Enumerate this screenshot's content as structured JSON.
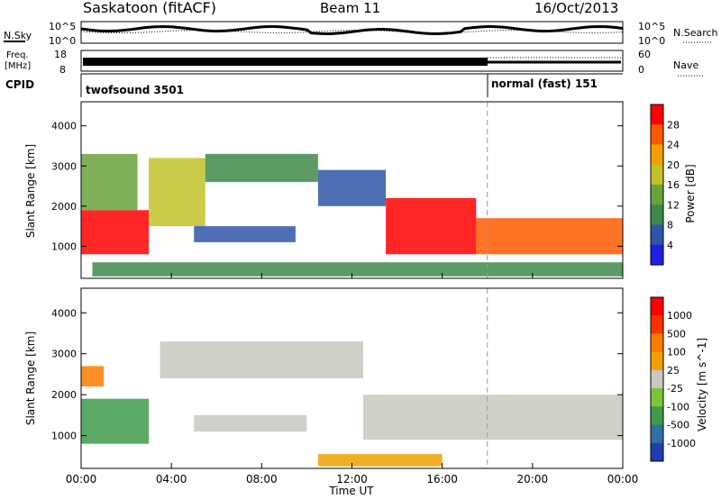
{
  "header": {
    "title": "Saskatoon (fitACF)",
    "beam": "Beam 11",
    "date": "16/Oct/2013"
  },
  "strip_nsky": {
    "label": "N.Sky",
    "right_label": "N.Search",
    "y_ticks_left": [
      "10^5",
      "10^0"
    ],
    "y_ticks_right": [
      "10^5",
      "10^0"
    ],
    "legend_style": "dotted"
  },
  "strip_freq": {
    "label_line1": "Freq.",
    "label_line2": "[MHz]",
    "right_label": "Nave",
    "y_ticks_left": [
      "18",
      "8"
    ],
    "y_ticks_right": [
      "60",
      "0"
    ],
    "legend_style": "dotted"
  },
  "strip_cpid": {
    "label": "CPID",
    "segments": [
      {
        "name": "twofsound 3501",
        "start_hour": 0,
        "end_hour": 18
      },
      {
        "name": "normal (fast) 151",
        "start_hour": 18,
        "end_hour": 24
      }
    ]
  },
  "chart_data": [
    {
      "type": "heatmap",
      "quantity": "power",
      "ylabel": "Slant Range [km]",
      "ylim": [
        200,
        4600
      ],
      "yticks": [
        1000,
        2000,
        3000,
        4000
      ],
      "xlim": [
        0,
        24
      ],
      "colorbar": {
        "label": "Power [dB]",
        "ticks": [
          "4",
          "8",
          "12",
          "16",
          "20",
          "24",
          "28"
        ],
        "colors": [
          "#1f1fe6",
          "#2f55a8",
          "#3f8a4a",
          "#69a23c",
          "#c2c22a",
          "#f0a000",
          "#ff5a00",
          "#ff0000"
        ]
      },
      "regions": [
        {
          "t0": 0.0,
          "t1": 3.0,
          "r0": 800,
          "r1": 1900,
          "level": 7
        },
        {
          "t0": 0.0,
          "t1": 2.5,
          "r0": 1900,
          "r1": 3300,
          "level": 3
        },
        {
          "t0": 3.0,
          "t1": 5.5,
          "r0": 1500,
          "r1": 3200,
          "level": 4
        },
        {
          "t0": 5.5,
          "t1": 10.5,
          "r0": 2600,
          "r1": 3300,
          "level": 2
        },
        {
          "t0": 10.5,
          "t1": 13.5,
          "r0": 2000,
          "r1": 2900,
          "level": 1
        },
        {
          "t0": 13.5,
          "t1": 17.5,
          "r0": 800,
          "r1": 2200,
          "level": 7
        },
        {
          "t0": 17.5,
          "t1": 24.0,
          "r0": 800,
          "r1": 1700,
          "level": 6
        },
        {
          "t0": 5.0,
          "t1": 9.5,
          "r0": 1100,
          "r1": 1500,
          "level": 1
        },
        {
          "t0": 0.5,
          "t1": 24.0,
          "r0": 250,
          "r1": 600,
          "level": 2
        }
      ]
    },
    {
      "type": "heatmap",
      "quantity": "velocity",
      "xlabel": "Time UT",
      "ylabel": "Slant Range [km]",
      "ylim": [
        200,
        4600
      ],
      "yticks": [
        1000,
        2000,
        3000,
        4000
      ],
      "xlim": [
        0,
        24
      ],
      "xticks": [
        "00:00",
        "04:00",
        "08:00",
        "12:00",
        "16:00",
        "20:00",
        "00:00"
      ],
      "colorbar": {
        "label": "Velocity [m s^-1]",
        "ticks": [
          "1000",
          "500",
          "100",
          "25",
          "-25",
          "-100",
          "-500",
          "-1000"
        ],
        "colors": [
          "#1f3fb0",
          "#2f70a8",
          "#3f9a4a",
          "#7cc43c",
          "#c8c8c0",
          "#f0a000",
          "#ff7a00",
          "#ff3000",
          "#ff0000"
        ]
      },
      "regions": [
        {
          "t0": 0.0,
          "t1": 3.0,
          "r0": 800,
          "r1": 1900,
          "level": 2
        },
        {
          "t0": 3.5,
          "t1": 12.5,
          "r0": 2400,
          "r1": 3300,
          "level": 4
        },
        {
          "t0": 12.5,
          "t1": 24.0,
          "r0": 900,
          "r1": 2000,
          "level": 4
        },
        {
          "t0": 5.0,
          "t1": 10.0,
          "r0": 1100,
          "r1": 1500,
          "level": 4
        },
        {
          "t0": 10.5,
          "t1": 16.0,
          "r0": 250,
          "r1": 550,
          "level": 5
        },
        {
          "t0": 0.0,
          "t1": 1.0,
          "r0": 2200,
          "r1": 2700,
          "level": 6
        }
      ]
    }
  ],
  "mode_change_hour": 18
}
